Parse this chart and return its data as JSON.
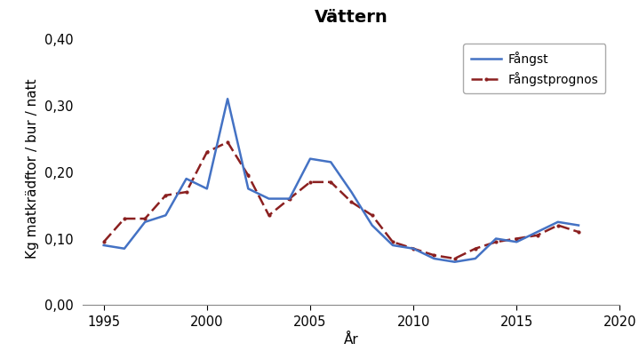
{
  "title": "Vättern",
  "xlabel": "År",
  "ylabel": "Kg matkrädftor / bur / natt",
  "years_fangst": [
    1995,
    1996,
    1997,
    1998,
    1999,
    2000,
    2001,
    2002,
    2003,
    2004,
    2005,
    2006,
    2007,
    2008,
    2009,
    2010,
    2011,
    2012,
    2013,
    2014,
    2015,
    2016,
    2017,
    2018
  ],
  "fangst": [
    0.09,
    0.085,
    0.125,
    0.135,
    0.19,
    0.175,
    0.31,
    0.175,
    0.16,
    0.16,
    0.22,
    0.215,
    0.17,
    0.12,
    0.09,
    0.085,
    0.07,
    0.065,
    0.07,
    0.1,
    0.095,
    0.11,
    0.125,
    0.12
  ],
  "years_prognos": [
    1995,
    1996,
    1997,
    1998,
    1999,
    2000,
    2001,
    2002,
    2003,
    2004,
    2005,
    2006,
    2007,
    2008,
    2009,
    2010,
    2011,
    2012,
    2013,
    2014,
    2015,
    2016,
    2017,
    2018
  ],
  "prognos": [
    0.095,
    0.13,
    0.13,
    0.165,
    0.17,
    0.23,
    0.245,
    0.195,
    0.135,
    0.16,
    0.185,
    0.185,
    0.155,
    0.135,
    0.095,
    0.085,
    0.075,
    0.07,
    0.085,
    0.095,
    0.1,
    0.105,
    0.12,
    0.11
  ],
  "fangst_color": "#4472C4",
  "prognos_color": "#8B2020",
  "xlim": [
    1994.0,
    2020.0
  ],
  "ylim": [
    0.0,
    0.41
  ],
  "yticks": [
    0.0,
    0.1,
    0.2,
    0.3,
    0.4
  ],
  "xticks": [
    1995,
    2000,
    2005,
    2010,
    2015,
    2020
  ],
  "background_color": "#FFFFFF",
  "legend_fangst": "Fångst",
  "legend_prognos": "Fångstprognos",
  "title_fontsize": 14,
  "axis_label_fontsize": 11,
  "tick_fontsize": 10.5
}
